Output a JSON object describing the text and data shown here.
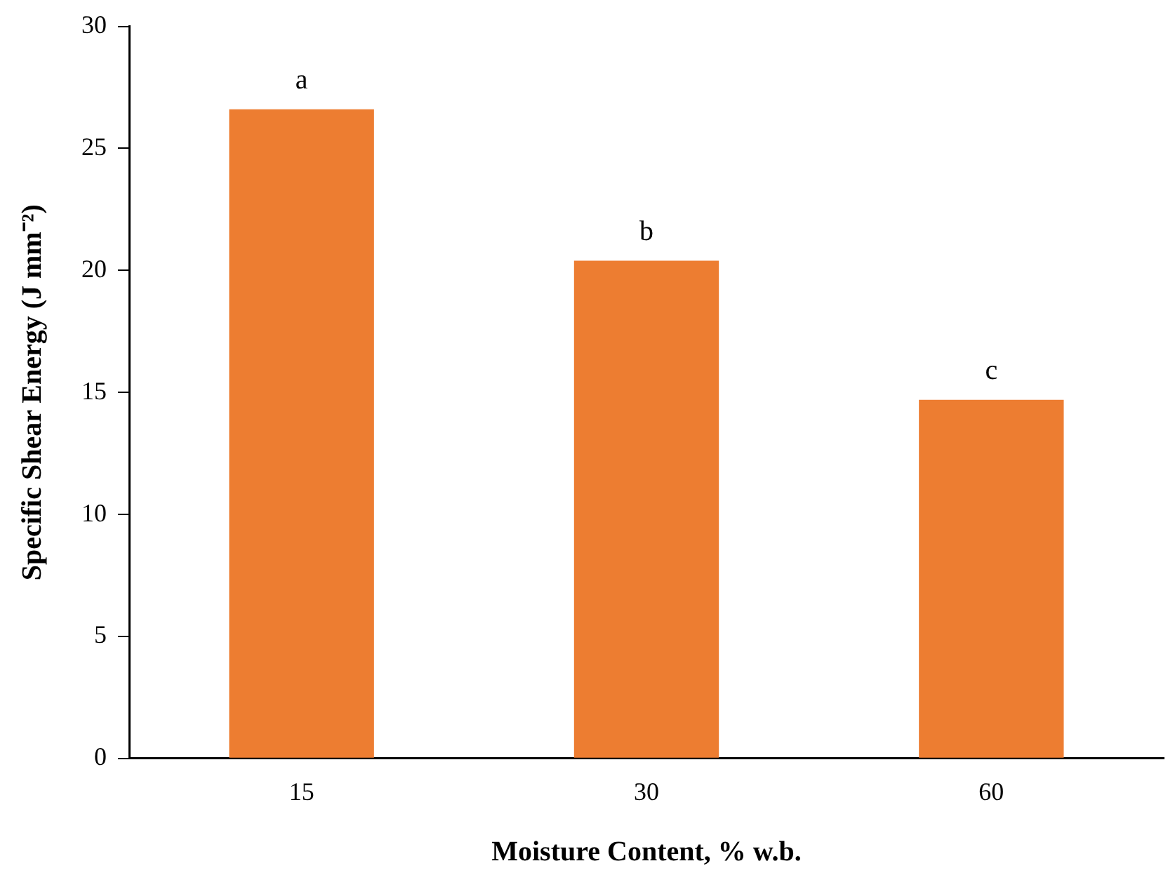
{
  "chart_data": {
    "type": "bar",
    "xlabel": "Moisture Content, % w.b.",
    "ylabel": "Specific Shear Energy (J mm⁻²)",
    "categories": [
      "15",
      "30",
      "60"
    ],
    "values": [
      26.6,
      20.4,
      14.7
    ],
    "color": "#ed7d31",
    "ylim": [
      0,
      30
    ],
    "yticks": [
      0,
      5,
      10,
      15,
      20,
      25,
      30
    ],
    "grid": false,
    "legend": false,
    "annotations": [
      {
        "text": "a",
        "x": "15",
        "y": 26.6
      },
      {
        "text": "b",
        "x": "30",
        "y": 20.4
      },
      {
        "text": "c",
        "x": "60",
        "y": 14.7
      }
    ]
  }
}
